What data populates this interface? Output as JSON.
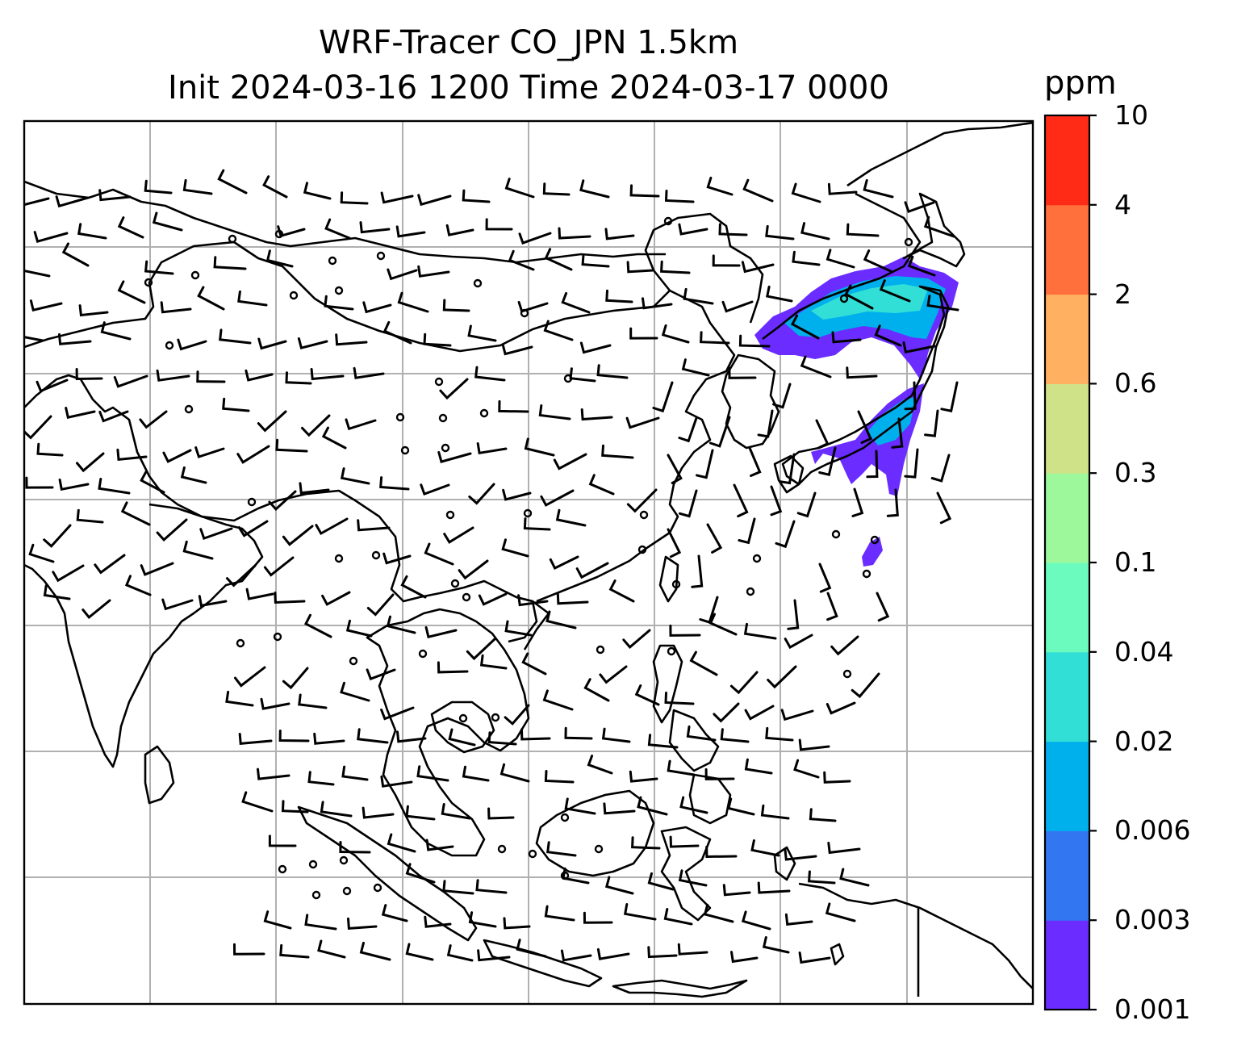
{
  "title": {
    "line1": "WRF-Tracer CO_JPN 1.5km",
    "line2": "Init 2024-03-16 1200 Time 2024-03-17 0000"
  },
  "colorbar": {
    "unit": "ppm",
    "levels": [
      "0.001",
      "0.003",
      "0.006",
      "0.02",
      "0.04",
      "0.1",
      "0.3",
      "0.6",
      "2",
      "4",
      "10"
    ],
    "colors": [
      "#6a2cff",
      "#3376f2",
      "#00b0ec",
      "#31dfd6",
      "#6bfbbe",
      "#9cf89b",
      "#cfe287",
      "#ffb060",
      "#ff703d",
      "#ff2b17"
    ]
  },
  "map": {
    "frame_color": "#000000",
    "gridline_color": "#b0b0b0",
    "coastline_color": "#000000",
    "wind_barb_color": "#000000",
    "plume_color": "#6a2cff",
    "plume_core_color": "#00b0ec",
    "plume_inner_color": "#31dfd6"
  }
}
